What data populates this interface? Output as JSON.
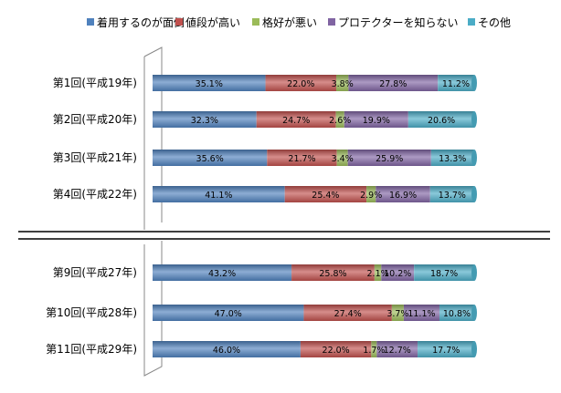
{
  "chart_data": {
    "type": "bar",
    "orientation": "horizontal",
    "stacked": "percent",
    "grid": false,
    "legend_position": "top",
    "categories": [
      "第1回(平成19年)",
      "第2回(平成20年)",
      "第3回(平成21年)",
      "第4回(平成22年)",
      "第9回(平成27年)",
      "第10回(平成28年)",
      "第11回(平成29年)"
    ],
    "series": [
      {
        "name": "着用するのが面倒",
        "color": "#4F81BD",
        "values": [
          35.1,
          32.3,
          35.6,
          41.1,
          43.2,
          47.0,
          46.0
        ],
        "labels": [
          "35.1%",
          "32.3%",
          "35.6%",
          "41.1%",
          "43.2%",
          "47.0%",
          "46.0%"
        ]
      },
      {
        "name": "値段が高い",
        "color": "#C0504D",
        "values": [
          22.0,
          24.7,
          21.7,
          25.4,
          25.8,
          27.4,
          22.0
        ],
        "labels": [
          "22.0%",
          "24.7%",
          "21.7%",
          "25.4%",
          "25.8%",
          "27.4%",
          "22.0%"
        ]
      },
      {
        "name": "格好が悪い",
        "color": "#9BBB59",
        "values": [
          3.8,
          2.6,
          3.4,
          2.9,
          2.1,
          3.7,
          1.7
        ],
        "labels": [
          "3.8%",
          "2.6%",
          "3.4%",
          "2.9%",
          "2.1%",
          "3.7%",
          "1.7%"
        ]
      },
      {
        "name": "プロテクターを知らない",
        "color": "#8064A2",
        "values": [
          27.8,
          19.9,
          25.9,
          16.9,
          10.2,
          11.1,
          12.7
        ],
        "labels": [
          "27.8%",
          "19.9%",
          "25.9%",
          "16.9%",
          "10.2%",
          "11.1%",
          "12.7%"
        ]
      },
      {
        "name": "その他",
        "color": "#4BACC6",
        "values": [
          11.2,
          20.6,
          13.3,
          13.7,
          18.7,
          10.8,
          17.7
        ],
        "labels": [
          "11.2%",
          "20.6%",
          "13.3%",
          "13.7%",
          "18.7%",
          "10.8%",
          "17.7%"
        ]
      }
    ],
    "xlim": [
      0,
      100
    ],
    "axis_break_after_category_index": 3,
    "title": "",
    "xlabel": "",
    "ylabel": ""
  }
}
